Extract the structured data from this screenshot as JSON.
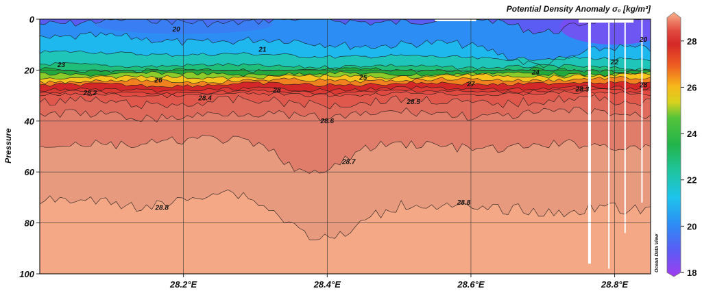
{
  "chart_data": {
    "type": "heatmap",
    "title": "Potential Density Anomaly σ₀ [kg/m³]",
    "ylabel": "Pressure",
    "xlabel": "",
    "watermark": "Ocean Data View",
    "x_ticks": [
      "28.2°E",
      "28.4°E",
      "28.6°E",
      "28.8°E"
    ],
    "x_tick_values": [
      28.2,
      28.4,
      28.6,
      28.8
    ],
    "xlim": [
      28.0,
      28.85
    ],
    "y_ticks": [
      "0",
      "20",
      "40",
      "60",
      "80",
      "100"
    ],
    "y_tick_values": [
      0,
      20,
      40,
      60,
      80,
      100
    ],
    "ylim": [
      0,
      100
    ],
    "y_inverted": true,
    "grid": true,
    "colorbar": {
      "ticks": [
        "18",
        "20",
        "22",
        "24",
        "26",
        "28"
      ],
      "tick_values": [
        18,
        20,
        22,
        24,
        26,
        28
      ],
      "range": [
        18,
        29
      ],
      "placement": "right"
    },
    "colors": {
      "18": "#a03cf0",
      "19": "#5a5cf4",
      "20": "#2c8ef4",
      "21": "#1ec4ec",
      "22": "#1ec59e",
      "23": "#23b44a",
      "24": "#54c43a",
      "25": "#d8d21e",
      "26": "#f6b81a",
      "27": "#ee5c22",
      "27.6": "#d42828",
      "28": "#e14a40",
      "28.3": "#dc7064",
      "28.6": "#e68c78",
      "28.8": "#f3a585",
      "29": "#f8b08a"
    },
    "contours": [
      {
        "level": "20",
        "depth_west": 1,
        "depth_east": 0
      },
      {
        "level": "21",
        "depth_west": 7,
        "depth_east": 12
      },
      {
        "level": "22",
        "depth_west": 13,
        "depth_east": 16
      },
      {
        "level": "23",
        "depth_west": 18,
        "depth_east": 19
      },
      {
        "level": "24",
        "depth_west": 20,
        "depth_east": 20
      },
      {
        "level": "25",
        "depth_west": 21.5,
        "depth_east": 21.5
      },
      {
        "level": "26",
        "depth_west": 23,
        "depth_east": 22
      },
      {
        "level": "27",
        "depth_west": 24.5,
        "depth_east": 23.5
      },
      {
        "level": "28",
        "depth_west": 26,
        "depth_east": 25
      },
      {
        "level": "28.2",
        "depth_west": 28,
        "depth_east": 27
      },
      {
        "level": "28.3",
        "depth_west": 29,
        "depth_east": 28
      },
      {
        "level": "28.4",
        "depth_west": 30,
        "depth_east": 29
      },
      {
        "level": "28.5",
        "depth_west": 33,
        "depth_east": 32
      },
      {
        "level": "28.6",
        "depth_west": 38,
        "depth_east": 37
      },
      {
        "level": "28.7",
        "depth_west": 50,
        "depth_east": 50
      },
      {
        "level": "28.8",
        "depth_west": 72,
        "depth_east": 74
      }
    ],
    "contour_labels": [
      {
        "text": "20",
        "lon": 28.19,
        "p": 4
      },
      {
        "text": "21",
        "lon": 28.31,
        "p": 12
      },
      {
        "text": "23",
        "lon": 28.03,
        "p": 18
      },
      {
        "text": "26",
        "lon": 28.165,
        "p": 24
      },
      {
        "text": "25",
        "lon": 28.45,
        "p": 23
      },
      {
        "text": "24",
        "lon": 28.69,
        "p": 21
      },
      {
        "text": "27",
        "lon": 28.6,
        "p": 25.5
      },
      {
        "text": "28.2",
        "lon": 28.07,
        "p": 29
      },
      {
        "text": "28",
        "lon": 28.33,
        "p": 28
      },
      {
        "text": "28.4",
        "lon": 28.23,
        "p": 31
      },
      {
        "text": "28.5",
        "lon": 28.52,
        "p": 32.5
      },
      {
        "text": "28.3",
        "lon": 28.755,
        "p": 27.5
      },
      {
        "text": "28.6",
        "lon": 28.4,
        "p": 40
      },
      {
        "text": "28.7",
        "lon": 28.43,
        "p": 56
      },
      {
        "text": "28.8",
        "lon": 28.17,
        "p": 74
      },
      {
        "text": "28.8",
        "lon": 28.59,
        "p": 72
      },
      {
        "text": "22",
        "lon": 28.8,
        "p": 17
      },
      {
        "text": "28",
        "lon": 28.84,
        "p": 26
      },
      {
        "text": "20",
        "lon": 28.84,
        "p": 8
      }
    ]
  }
}
